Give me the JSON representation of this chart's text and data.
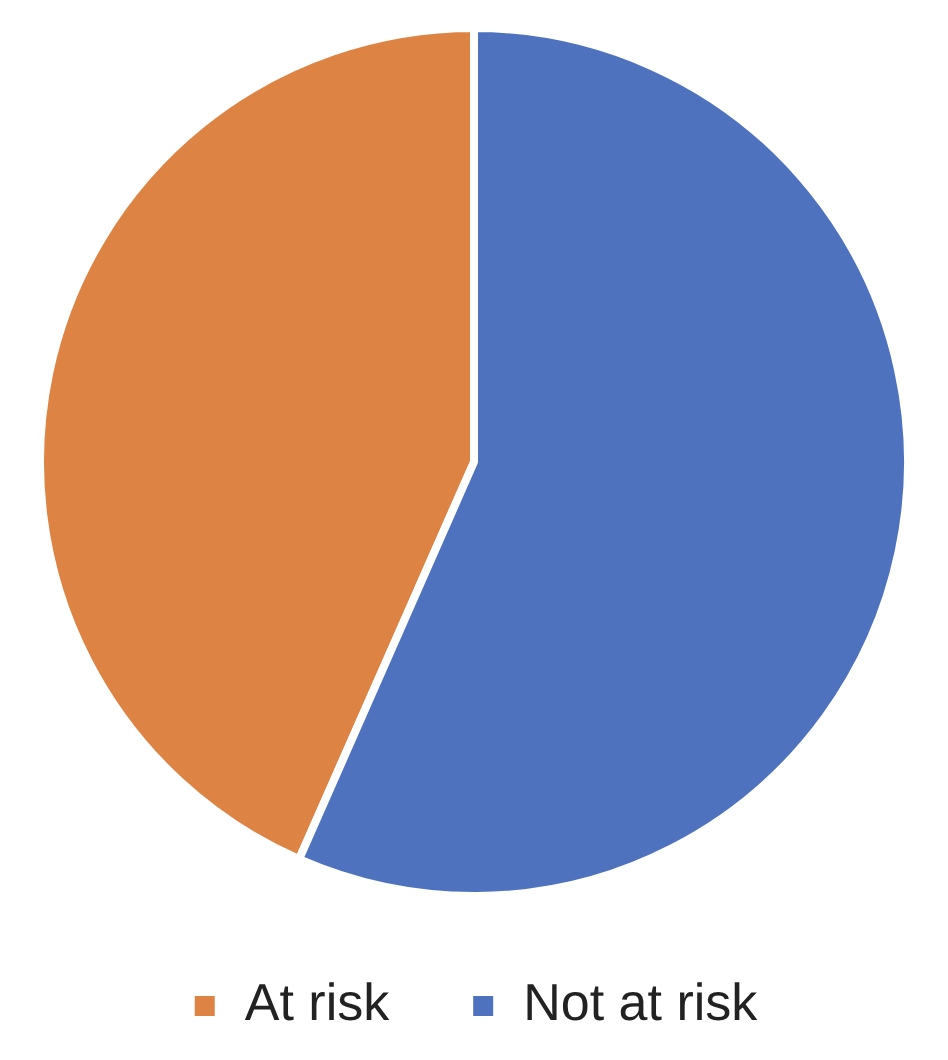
{
  "chart_data": {
    "type": "pie",
    "categories": [
      "At risk",
      "Not at risk"
    ],
    "values": [
      43.4,
      56.6
    ],
    "colors": [
      "#dd8344",
      "#4e72be"
    ],
    "legend": "bottom"
  }
}
